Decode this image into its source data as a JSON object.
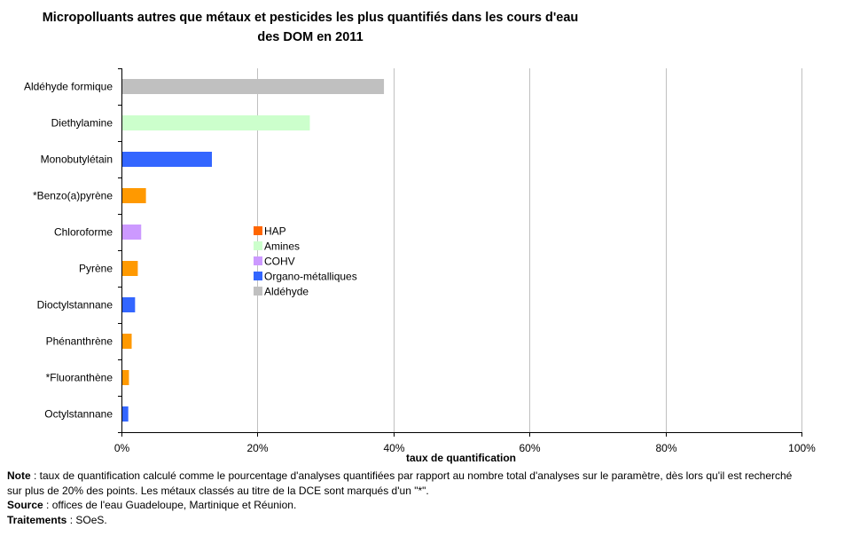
{
  "chart_data": {
    "type": "bar",
    "orientation": "horizontal",
    "title_line1": "Micropolluants autres que métaux et pesticides les plus quantifiés dans les cours d'eau",
    "title_line2": "des DOM en 2011",
    "xlabel": "taux de quantification",
    "ylabel": "",
    "xlim": [
      0,
      100
    ],
    "xticks": [
      "0%",
      "20%",
      "40%",
      "60%",
      "80%",
      "100%"
    ],
    "xtick_values": [
      0,
      20,
      40,
      60,
      80,
      100
    ],
    "grid": true,
    "legend_position": "center-left",
    "categories": [
      "Aldéhyde formique",
      "Diethylamine",
      "Monobutylétain",
      "*Benzo(a)pyrène",
      "Chloroforme",
      "Pyrène",
      "Dioctylstannane",
      "Phénanthrène",
      "*Fluoranthène",
      "Octylstannane"
    ],
    "values": [
      38.6,
      27.7,
      13.3,
      3.6,
      2.9,
      2.4,
      2.0,
      1.5,
      1.1,
      1.0
    ],
    "groups": [
      "Aldéhyde",
      "Amines",
      "Organo-métalliques",
      "HAP",
      "COHV",
      "HAP",
      "Organo-métalliques",
      "HAP",
      "HAP",
      "Organo-métalliques"
    ],
    "legend": [
      {
        "name": "HAP",
        "color": "#ff9900"
      },
      {
        "name": "Amines",
        "color": "#ccffcc"
      },
      {
        "name": "COHV",
        "color": "#cc99ff"
      },
      {
        "name": "Organo-métalliques",
        "color": "#3366ff"
      },
      {
        "name": "Aldéhyde",
        "color": "#c0c0c0"
      }
    ],
    "legend_swatch_colors": [
      "#ff6600",
      "#ccffcc",
      "#cc99ff",
      "#3366ff",
      "#c0c0c0"
    ]
  },
  "notes": {
    "note_label": "Note",
    "note_text": " : taux de quantification calculé comme le pourcentage d'analyses quantifiées par rapport au nombre total d'analyses sur le paramètre, dès lors qu'il est recherché sur plus de 20% des points. Les métaux classés au titre de la DCE sont marqués d'un \"*\".",
    "source_label": "Source",
    "source_text": " : offices de l'eau Guadeloupe, Martinique et Réunion.",
    "traitements_label": "Traitements",
    "traitements_text": " : SOeS."
  }
}
